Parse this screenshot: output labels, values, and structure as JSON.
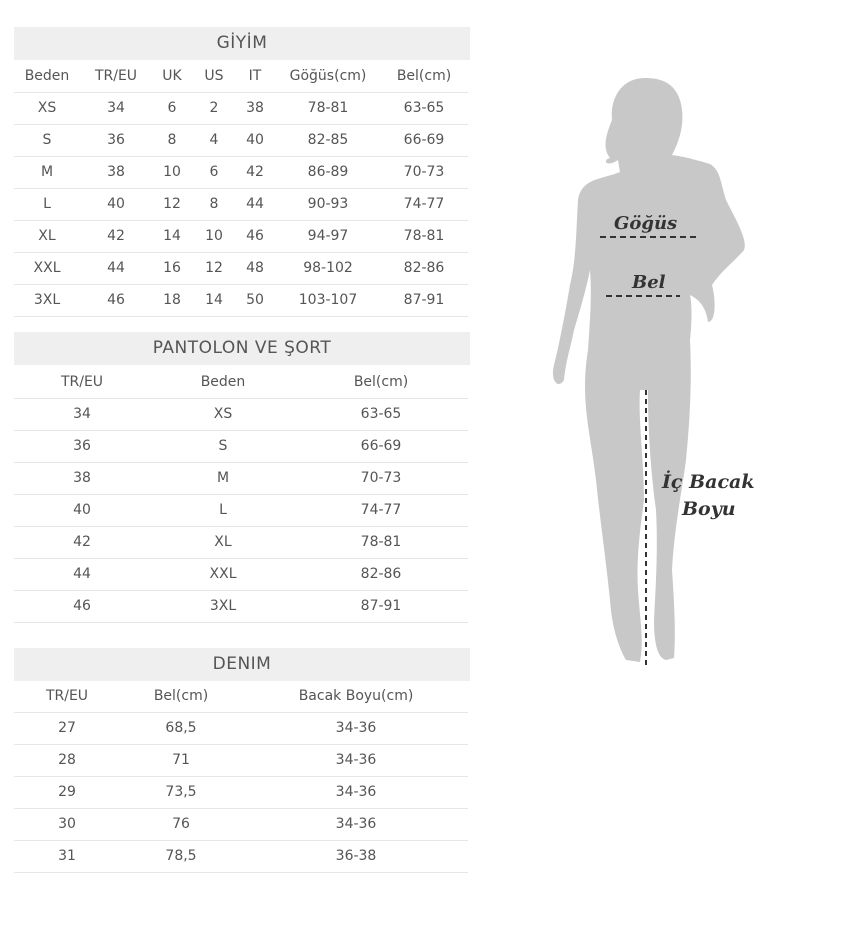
{
  "tables": [
    {
      "title": "GİYİM",
      "headers": [
        "Beden",
        "TR/EU",
        "UK",
        "US",
        "IT",
        "Göğüs(cm)",
        "Bel(cm)"
      ],
      "rows": [
        [
          "XS",
          "34",
          "6",
          "2",
          "38",
          "78-81",
          "63-65"
        ],
        [
          "S",
          "36",
          "8",
          "4",
          "40",
          "82-85",
          "66-69"
        ],
        [
          "M",
          "38",
          "10",
          "6",
          "42",
          "86-89",
          "70-73"
        ],
        [
          "L",
          "40",
          "12",
          "8",
          "44",
          "90-93",
          "74-77"
        ],
        [
          "XL",
          "42",
          "14",
          "10",
          "46",
          "94-97",
          "78-81"
        ],
        [
          "XXL",
          "44",
          "16",
          "12",
          "48",
          "98-102",
          "82-86"
        ],
        [
          "3XL",
          "46",
          "18",
          "14",
          "50",
          "103-107",
          "87-91"
        ]
      ]
    },
    {
      "title": "PANTOLON VE ŞORT",
      "headers": [
        "TR/EU",
        "Beden",
        "Bel(cm)"
      ],
      "rows": [
        [
          "34",
          "XS",
          "63-65"
        ],
        [
          "36",
          "S",
          "66-69"
        ],
        [
          "38",
          "M",
          "70-73"
        ],
        [
          "40",
          "L",
          "74-77"
        ],
        [
          "42",
          "XL",
          "78-81"
        ],
        [
          "44",
          "XXL",
          "82-86"
        ],
        [
          "46",
          "3XL",
          "87-91"
        ]
      ]
    },
    {
      "title": "DENIM",
      "headers": [
        "TR/EU",
        "Bel(cm)",
        "Bacak Boyu(cm)"
      ],
      "rows": [
        [
          "27",
          "68,5",
          "34-36"
        ],
        [
          "28",
          "71",
          "34-36"
        ],
        [
          "29",
          "73,5",
          "34-36"
        ],
        [
          "30",
          "76",
          "34-36"
        ],
        [
          "31",
          "78,5",
          "36-38"
        ]
      ]
    }
  ],
  "figure": {
    "chest_label": "Göğüs",
    "waist_label": "Bel",
    "inseam_label_line1": "İç Bacak",
    "inseam_label_line2": "Boyu",
    "silhouette_color": "#c8c8c8"
  }
}
